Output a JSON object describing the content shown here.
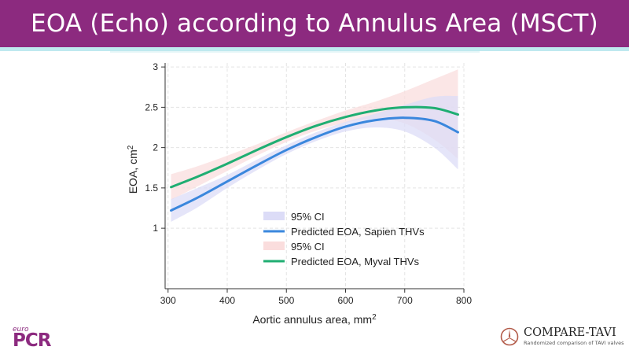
{
  "slide": {
    "title": "EOA (Echo) according to Annulus Area (MSCT)",
    "colors": {
      "title_bg": "#8c2a7f",
      "accent": "#bfe9ef"
    }
  },
  "logos": {
    "left": {
      "small": "euro",
      "main": "PCR"
    },
    "right": {
      "name": "COMPARE-TAVI",
      "subtitle": "Randomized comparison of TAVI valves",
      "icon": "mercedes-star-icon"
    }
  },
  "chart_data": {
    "type": "line",
    "xlabel": "Aortic annulus area, mm",
    "xlabel_sup": "2",
    "ylabel": "EOA, cm",
    "ylabel_sup": "2",
    "xlim": [
      295,
      800
    ],
    "ylim": [
      0.25,
      3.05
    ],
    "xticks": [
      300,
      400,
      500,
      600,
      700,
      800
    ],
    "yticks": [
      1,
      1.5,
      2,
      2.5,
      3
    ],
    "ytick_labels": [
      "1",
      "1.5",
      "2",
      "2.5",
      "3"
    ],
    "grid": true,
    "legend_position": "bottom-right-inside",
    "legend": [
      {
        "label": "95% CI",
        "kind": "band",
        "color": "#dcdcf7"
      },
      {
        "label": "Predicted EOA, Sapien THVs",
        "kind": "line",
        "color": "#3a87dd"
      },
      {
        "label": "95% CI",
        "kind": "band",
        "color": "#fadddd"
      },
      {
        "label": "Predicted EOA, Myval THVs",
        "kind": "line",
        "color": "#1fae72"
      }
    ],
    "series": [
      {
        "name": "Predicted EOA, Sapien THVs",
        "color": "#3a87dd",
        "band_color": "#dcdcf7",
        "x": [
          305,
          350,
          400,
          450,
          500,
          550,
          600,
          650,
          700,
          750,
          790
        ],
        "y": [
          1.22,
          1.38,
          1.58,
          1.78,
          1.97,
          2.13,
          2.26,
          2.34,
          2.37,
          2.33,
          2.19
        ],
        "lower": [
          1.08,
          1.26,
          1.5,
          1.72,
          1.92,
          2.08,
          2.2,
          2.25,
          2.2,
          2.0,
          1.73
        ],
        "upper": [
          1.36,
          1.5,
          1.66,
          1.85,
          2.03,
          2.19,
          2.32,
          2.42,
          2.53,
          2.63,
          2.64
        ]
      },
      {
        "name": "Predicted EOA, Myval THVs",
        "color": "#1fae72",
        "band_color": "#fadddd",
        "x": [
          305,
          350,
          400,
          450,
          500,
          550,
          600,
          650,
          700,
          750,
          790
        ],
        "y": [
          1.51,
          1.64,
          1.8,
          1.97,
          2.13,
          2.27,
          2.38,
          2.46,
          2.5,
          2.49,
          2.41
        ],
        "lower": [
          1.35,
          1.52,
          1.71,
          1.9,
          2.07,
          2.21,
          2.31,
          2.36,
          2.3,
          2.1,
          1.86
        ],
        "upper": [
          1.67,
          1.77,
          1.9,
          2.04,
          2.19,
          2.33,
          2.46,
          2.57,
          2.7,
          2.85,
          2.97
        ]
      }
    ]
  }
}
